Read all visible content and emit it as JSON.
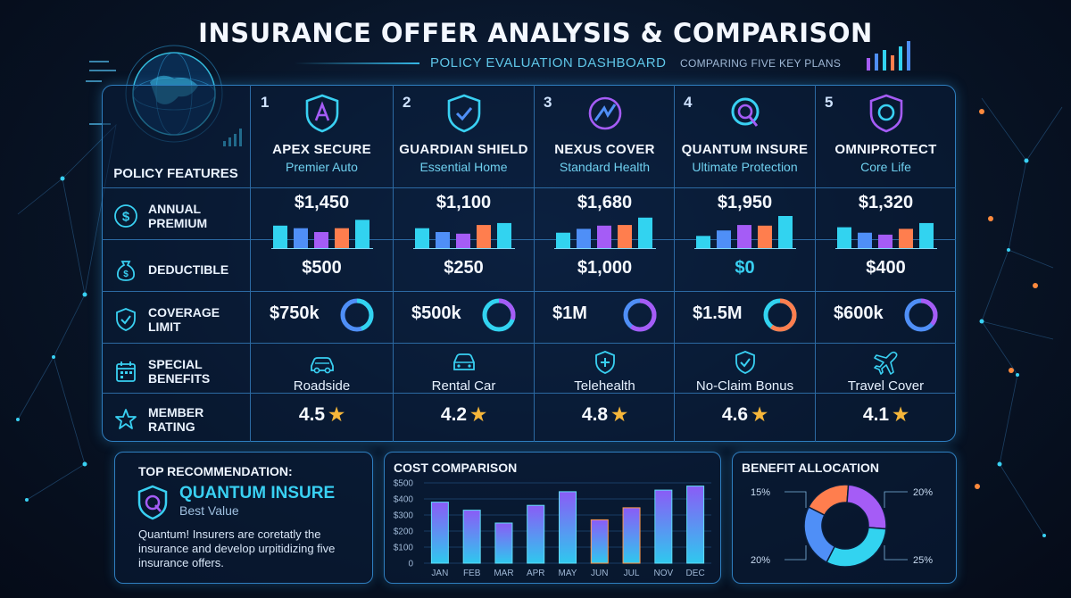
{
  "header": {
    "title": "INSURANCE OFFER ANALYSIS & COMPARISON",
    "subtitle": "POLICY EVALUATION DASHBOARD",
    "subnote": "COMPARING FIVE KEY PLANS"
  },
  "features": {
    "header": "POLICY FEATURES",
    "rows": [
      {
        "label": "ANNUAL\nPREMIUM",
        "icon": "dollar-circle-icon"
      },
      {
        "label": "DEDUCTIBLE",
        "icon": "money-bag-icon"
      },
      {
        "label": "COVERAGE\nLIMIT",
        "icon": "shield-check-icon"
      },
      {
        "label": "SPECIAL\nBENEFITS",
        "icon": "calendar-icon"
      },
      {
        "label": "MEMBER\nRATING",
        "icon": "star-icon"
      }
    ]
  },
  "plans": [
    {
      "number": "1",
      "name": "APEX SECURE",
      "type": "Premier Auto",
      "premium": "$1,450",
      "premium_bars": [
        0.7,
        0.62,
        0.5,
        0.62,
        0.88
      ],
      "deductible": "$500",
      "coverage": "$750k",
      "coverage_fraction": 0.75,
      "benefit": "Roadside",
      "benefit_icon": "car-icon",
      "rating": "4.5",
      "rating_value": 4.5
    },
    {
      "number": "2",
      "name": "GUARDIAN SHIELD",
      "type": "Essential Home",
      "premium": "$1,100",
      "premium_bars": [
        0.62,
        0.5,
        0.45,
        0.72,
        0.78
      ],
      "deductible": "$250",
      "coverage": "$500k",
      "coverage_fraction": 0.5,
      "benefit": "Rental Car",
      "benefit_icon": "car-front-icon",
      "rating": "4.2",
      "rating_value": 4.2
    },
    {
      "number": "3",
      "name": "NEXUS COVER",
      "type": "Standard Health",
      "premium": "$1,680",
      "premium_bars": [
        0.48,
        0.6,
        0.7,
        0.72,
        0.95
      ],
      "deductible": "$1,000",
      "coverage": "$1M",
      "coverage_fraction": 1.0,
      "benefit": "Telehealth",
      "benefit_icon": "medical-shield-icon",
      "rating": "4.8",
      "rating_value": 4.8
    },
    {
      "number": "4",
      "name": "QUANTUM INSURE",
      "type": "Ultimate Protection",
      "premium": "$1,950",
      "premium_bars": [
        0.38,
        0.55,
        0.72,
        0.7,
        1.0
      ],
      "deductible": "$0",
      "coverage": "$1.5M",
      "coverage_fraction": 1.0,
      "benefit": "No-Claim Bonus",
      "benefit_icon": "shield-check-icon",
      "rating": "4.6",
      "rating_value": 4.6
    },
    {
      "number": "5",
      "name": "OMNIPROTECT",
      "type": "Core Life",
      "premium": "$1,320",
      "premium_bars": [
        0.65,
        0.48,
        0.42,
        0.6,
        0.78
      ],
      "deductible": "$400",
      "coverage": "$600k",
      "coverage_fraction": 0.6,
      "benefit": "Travel Cover",
      "benefit_icon": "airplane-icon",
      "rating": "4.1",
      "rating_value": 4.1
    }
  ],
  "recommendation": {
    "title": "TOP RECOMMENDATION:",
    "name": "QUANTUM INSURE",
    "subtitle": "Best Value",
    "description": "Quantum! Insurers are coretatly the insurance and develop urpitidizing five insurance offers."
  },
  "chart_data": [
    {
      "type": "bar",
      "title": "COST COMPARISON",
      "categories": [
        "JAN",
        "FEB",
        "MAR",
        "APR",
        "MAY",
        "JUN",
        "JUL",
        "NOV",
        "DEC"
      ],
      "values": [
        380,
        330,
        250,
        360,
        445,
        270,
        345,
        455,
        480
      ],
      "ylim": [
        0,
        500
      ],
      "yticks": [
        "$500",
        "$400",
        "$300",
        "$200",
        "$100",
        "0"
      ],
      "grid": true
    },
    {
      "type": "pie",
      "title": "BENEFIT ALLOCATION",
      "labels": [
        "15%",
        "20%",
        "25%",
        "20%"
      ],
      "values": [
        15,
        20,
        25,
        20
      ],
      "colors": [
        "#ff7e4e",
        "#a55cf6",
        "#32d3f0",
        "#4f8ff7"
      ]
    }
  ],
  "colors": {
    "accent": "#39d0f2",
    "border": "#2f7fc0",
    "star": "#f6b63a"
  }
}
